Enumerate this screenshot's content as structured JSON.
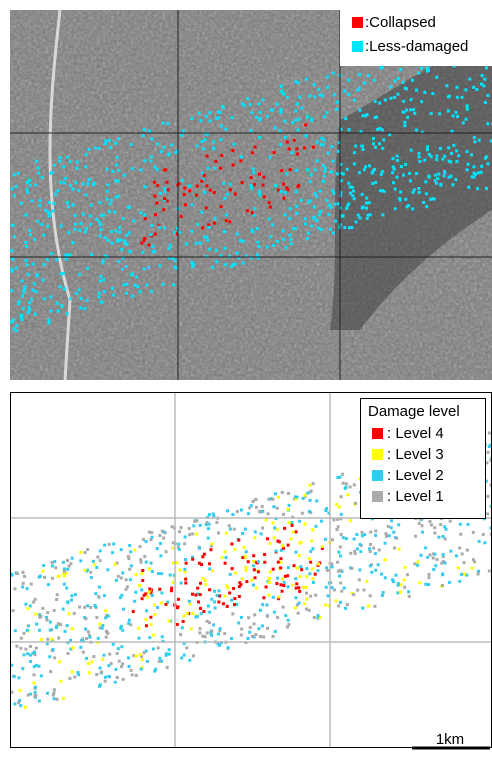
{
  "top_panel": {
    "legend": [
      {
        "label": ":Collapsed",
        "color": "#ff0000"
      },
      {
        "label": ":Less-damaged",
        "color": "#00e5ff"
      }
    ]
  },
  "bottom_panel": {
    "legend_title": "Damage level",
    "legend": [
      {
        "label": ": Level 4",
        "color": "#ff0000"
      },
      {
        "label": ": Level 3",
        "color": "#ffff00"
      },
      {
        "label": ": Level 2",
        "color": "#33ccee"
      },
      {
        "label": ": Level 1",
        "color": "#aaaaaa"
      }
    ],
    "scale_bar": "1km"
  }
}
